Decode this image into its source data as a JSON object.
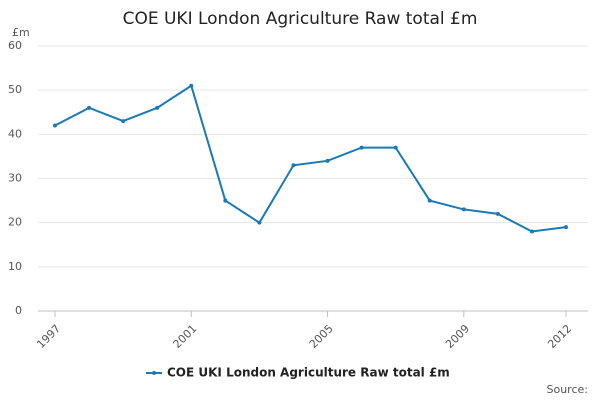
{
  "chart_data": {
    "type": "line",
    "title": "COE UKI London Agriculture Raw total £m",
    "y_unit": "£m",
    "source": "Source:",
    "x": [
      1997,
      1998,
      1999,
      2000,
      2001,
      2002,
      2003,
      2004,
      2005,
      2006,
      2007,
      2008,
      2009,
      2010,
      2011,
      2012
    ],
    "series": [
      {
        "name": "COE UKI London Agriculture Raw total £m",
        "color": "#1a7ab8",
        "values": [
          42,
          46,
          43,
          46,
          51,
          25,
          20,
          33,
          34,
          37,
          37,
          25,
          23,
          22,
          18,
          19
        ]
      }
    ],
    "xlim": [
      1997,
      2012
    ],
    "xticks": [
      1997,
      2001,
      2005,
      2009,
      2012
    ],
    "ylim": [
      0,
      60
    ],
    "yticks": [
      0,
      10,
      20,
      30,
      40,
      50,
      60
    ],
    "grid": true,
    "legend": "bottom"
  }
}
